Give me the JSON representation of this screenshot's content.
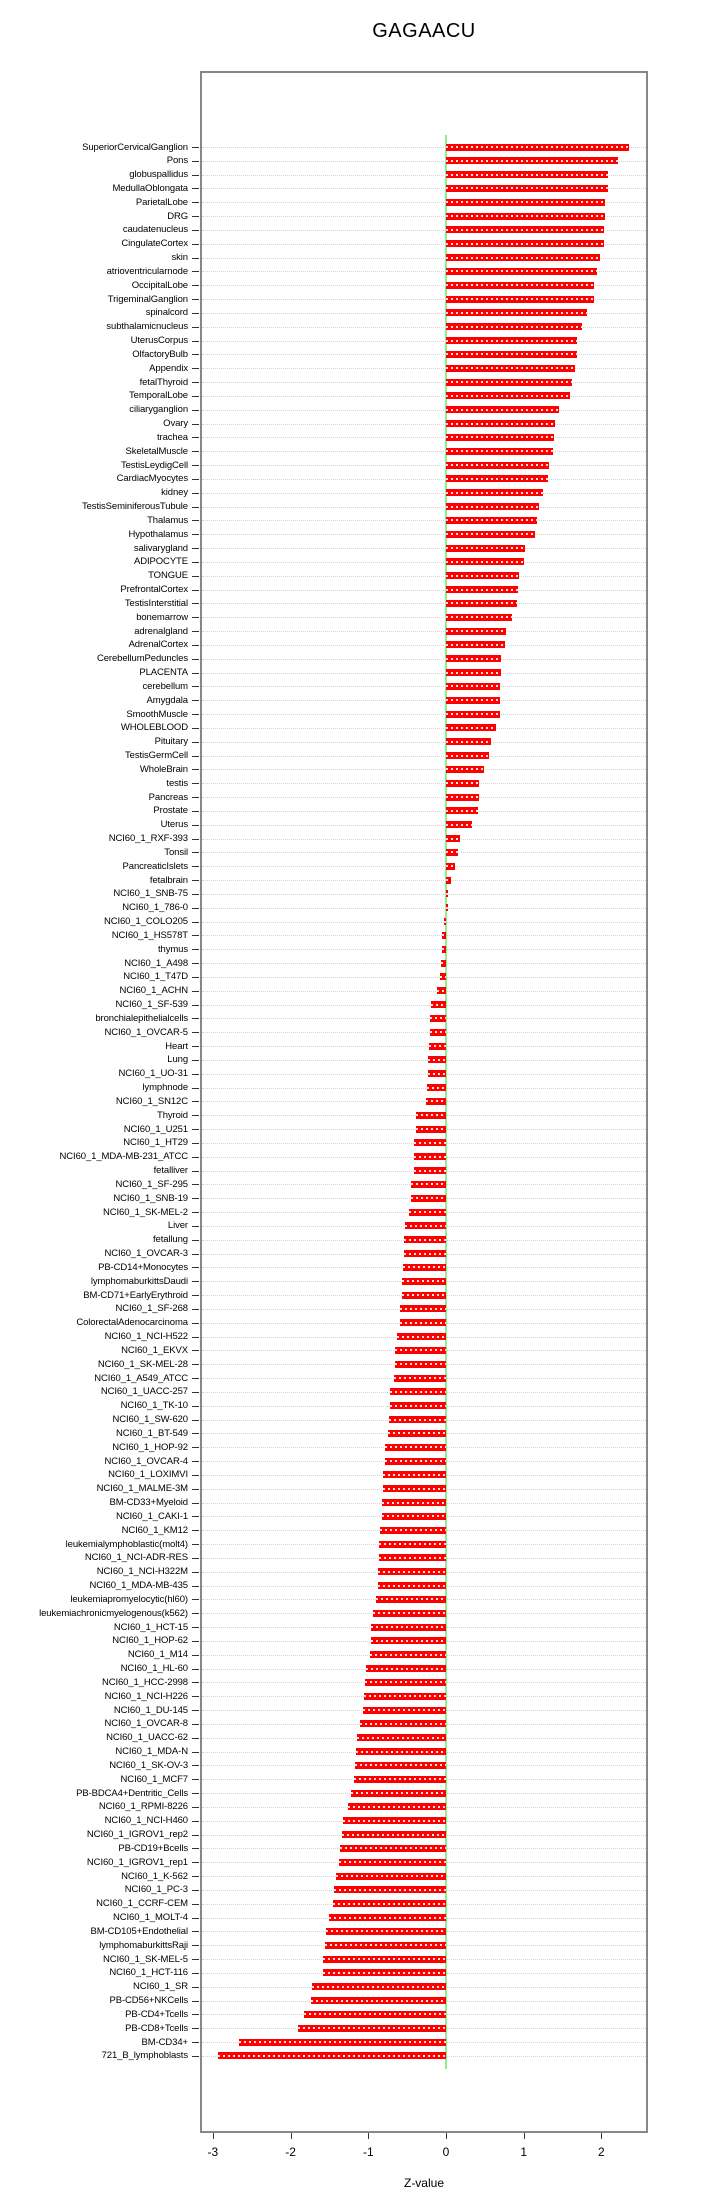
{
  "chart_data": {
    "type": "bar",
    "orientation": "horizontal",
    "title": "GAGAACU",
    "xlabel": "Z-value",
    "ylabel": "",
    "xlim": [
      -3.17,
      2.6
    ],
    "x_ticks": [
      "-3",
      "-2",
      "-1",
      "0",
      "1",
      "2"
    ],
    "x_tick_values": [
      -3,
      -2,
      -1,
      0,
      1,
      2
    ],
    "grid": "dotted horizontal line per category",
    "legend": "none",
    "bar_color": "#FF0000",
    "zero_line_color": "#90EE90",
    "frame_color": "#878787",
    "categories": [
      "SuperiorCervicalGanglion",
      "Pons",
      "globuspallidus",
      "MedullaOblongata",
      "ParietalLobe",
      "DRG",
      "caudatenucleus",
      "CingulateCortex",
      "skin",
      "atrioventricularnode",
      "OccipitalLobe",
      "TrigeminalGanglion",
      "spinalcord",
      "subthalamicnucleus",
      "UterusCorpus",
      "OlfactoryBulb",
      "Appendix",
      "fetalThyroid",
      "TemporalLobe",
      "ciliaryganglion",
      "Ovary",
      "trachea",
      "SkeletalMuscle",
      "TestisLeydigCell",
      "CardiacMyocytes",
      "kidney",
      "TestisSeminiferousTubule",
      "Thalamus",
      "Hypothalamus",
      "salivarygland",
      "ADIPOCYTE",
      "TONGUE",
      "PrefrontalCortex",
      "TestisInterstitial",
      "bonemarrow",
      "adrenalgland",
      "AdrenalCortex",
      "CerebellumPeduncles",
      "PLACENTA",
      "cerebellum",
      "Amygdala",
      "SmoothMuscle",
      "WHOLEBLOOD",
      "Pituitary",
      "TestisGermCell",
      "WholeBrain",
      "testis",
      "Pancreas",
      "Prostate",
      "Uterus",
      "NCI60_1_RXF-393",
      "Tonsil",
      "PancreaticIslets",
      "fetalbrain",
      "NCI60_1_SNB-75",
      "NCI60_1_786-0",
      "NCI60_1_COLO205",
      "NCI60_1_HS578T",
      "thymus",
      "NCI60_1_A498",
      "NCI60_1_T47D",
      "NCI60_1_ACHN",
      "NCI60_1_SF-539",
      "bronchialepithelialcells",
      "NCI60_1_OVCAR-5",
      "Heart",
      "Lung",
      "NCI60_1_UO-31",
      "lymphnode",
      "NCI60_1_SN12C",
      "Thyroid",
      "NCI60_1_U251",
      "NCI60_1_HT29",
      "NCI60_1_MDA-MB-231_ATCC",
      "fetalliver",
      "NCI60_1_SF-295",
      "NCI60_1_SNB-19",
      "NCI60_1_SK-MEL-2",
      "Liver",
      "fetallung",
      "NCI60_1_OVCAR-3",
      "PB-CD14+Monocytes",
      "lymphomaburkittsDaudi",
      "BM-CD71+EarlyErythroid",
      "NCI60_1_SF-268",
      "ColorectalAdenocarcinoma",
      "NCI60_1_NCI-H522",
      "NCI60_1_EKVX",
      "NCI60_1_SK-MEL-28",
      "NCI60_1_A549_ATCC",
      "NCI60_1_UACC-257",
      "NCI60_1_TK-10",
      "NCI60_1_SW-620",
      "NCI60_1_BT-549",
      "NCI60_1_HOP-92",
      "NCI60_1_OVCAR-4",
      "NCI60_1_LOXIMVI",
      "NCI60_1_MALME-3M",
      "BM-CD33+Myeloid",
      "NCI60_1_CAKI-1",
      "NCI60_1_KM12",
      "leukemialymphoblastic(molt4)",
      "NCI60_1_NCI-ADR-RES",
      "NCI60_1_NCI-H322M",
      "NCI60_1_MDA-MB-435",
      "leukemiapromyelocytic(hl60)",
      "leukemiachronicmyelogenous(k562)",
      "NCI60_1_HCT-15",
      "NCI60_1_HOP-62",
      "NCI60_1_M14",
      "NCI60_1_HL-60",
      "NCI60_1_HCC-2998",
      "NCI60_1_NCI-H226",
      "NCI60_1_DU-145",
      "NCI60_1_OVCAR-8",
      "NCI60_1_UACC-62",
      "NCI60_1_MDA-N",
      "NCI60_1_SK-OV-3",
      "NCI60_1_MCF7",
      "PB-BDCA4+Dentritic_Cells",
      "NCI60_1_RPMI-8226",
      "NCI60_1_NCI-H460",
      "NCI60_1_IGROV1_rep2",
      "PB-CD19+Bcells",
      "NCI60_1_IGROV1_rep1",
      "NCI60_1_K-562",
      "NCI60_1_PC-3",
      "NCI60_1_CCRF-CEM",
      "NCI60_1_MOLT-4",
      "BM-CD105+Endothelial",
      "lymphomaburkittsRaji",
      "NCI60_1_SK-MEL-5",
      "NCI60_1_HCT-116",
      "NCI60_1_SR",
      "PB-CD56+NKCells",
      "PB-CD4+Tcells",
      "PB-CD8+Tcells",
      "BM-CD34+",
      "721_B_lymphoblasts"
    ],
    "values": [
      2.36,
      2.22,
      2.08,
      2.08,
      2.05,
      2.05,
      2.03,
      2.03,
      1.98,
      1.94,
      1.91,
      1.9,
      1.82,
      1.75,
      1.68,
      1.68,
      1.66,
      1.62,
      1.6,
      1.46,
      1.4,
      1.39,
      1.38,
      1.32,
      1.31,
      1.25,
      1.2,
      1.17,
      1.15,
      1.02,
      1.0,
      0.94,
      0.93,
      0.92,
      0.85,
      0.77,
      0.76,
      0.71,
      0.71,
      0.7,
      0.69,
      0.69,
      0.64,
      0.58,
      0.55,
      0.49,
      0.43,
      0.42,
      0.41,
      0.34,
      0.18,
      0.16,
      0.11,
      0.06,
      0.02,
      0.02,
      -0.03,
      -0.05,
      -0.05,
      -0.07,
      -0.08,
      -0.12,
      -0.19,
      -0.21,
      -0.21,
      -0.22,
      -0.23,
      -0.23,
      -0.24,
      -0.26,
      -0.38,
      -0.39,
      -0.41,
      -0.41,
      -0.41,
      -0.45,
      -0.45,
      -0.48,
      -0.53,
      -0.54,
      -0.54,
      -0.55,
      -0.56,
      -0.57,
      -0.59,
      -0.59,
      -0.63,
      -0.65,
      -0.66,
      -0.67,
      -0.72,
      -0.72,
      -0.73,
      -0.75,
      -0.78,
      -0.79,
      -0.81,
      -0.81,
      -0.82,
      -0.83,
      -0.85,
      -0.86,
      -0.86,
      -0.88,
      -0.88,
      -0.9,
      -0.94,
      -0.97,
      -0.97,
      -0.98,
      -1.03,
      -1.04,
      -1.05,
      -1.07,
      -1.11,
      -1.14,
      -1.16,
      -1.17,
      -1.19,
      -1.22,
      -1.26,
      -1.32,
      -1.34,
      -1.36,
      -1.38,
      -1.42,
      -1.44,
      -1.45,
      -1.51,
      -1.54,
      -1.56,
      -1.58,
      -1.58,
      -1.73,
      -1.74,
      -1.83,
      -1.9,
      -2.67,
      -2.93
    ]
  }
}
